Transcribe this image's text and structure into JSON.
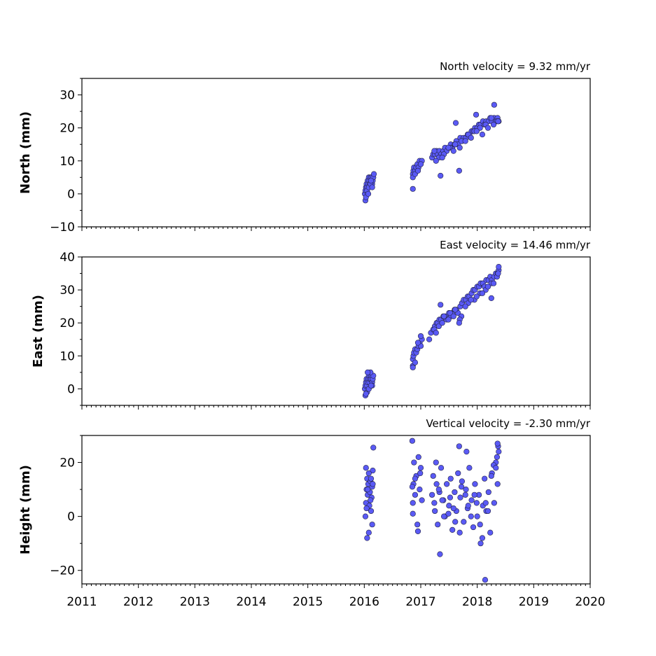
{
  "chart_data": [
    {
      "type": "scatter",
      "title": "North velocity = 9.32 mm/yr",
      "ylabel": "North (mm)",
      "xlabel": "",
      "xlim": [
        2011,
        2020
      ],
      "ylim": [
        -10,
        35
      ],
      "yticks": [
        -10,
        0,
        10,
        20,
        30
      ],
      "xticks": [
        2011,
        2012,
        2013,
        2014,
        2015,
        2016,
        2017,
        2018,
        2019,
        2020
      ],
      "show_x_tick_labels": false,
      "marker_color": "#5a5af5",
      "edge_color": "#222244",
      "series": [
        {
          "x": [
            2016.01,
            2016.02,
            2016.03,
            2016.04,
            2016.05,
            2016.06,
            2016.07,
            2016.08,
            2016.09,
            2016.1,
            2016.11,
            2016.12,
            2016.13,
            2016.14,
            2016.15,
            2016.16,
            2016.17,
            2016.02,
            2016.05,
            2016.08,
            2016.11,
            2016.14,
            2016.03,
            2016.07,
            2016.12,
            2016.86,
            2016.87,
            2016.88,
            2016.9,
            2016.92,
            2016.94,
            2016.96,
            2016.98,
            2017.0,
            2017.02,
            2016.86,
            2016.9,
            2016.95,
            2017.0,
            2017.2,
            2017.22,
            2017.25,
            2017.28,
            2017.3,
            2017.33,
            2017.36,
            2017.4,
            2017.43,
            2017.46,
            2017.5,
            2017.53,
            2017.56,
            2017.6,
            2017.63,
            2017.66,
            2017.7,
            2017.73,
            2017.76,
            2017.8,
            2017.83,
            2017.86,
            2017.9,
            2017.93,
            2017.96,
            2018.0,
            2018.03,
            2018.06,
            2018.1,
            2018.13,
            2018.16,
            2018.2,
            2018.23,
            2018.26,
            2018.3,
            2018.33,
            2018.36,
            2018.38,
            2017.24,
            2017.32,
            2017.41,
            2017.52,
            2017.61,
            2017.72,
            2017.84,
            2017.95,
            2018.05,
            2018.15,
            2018.25,
            2018.35,
            2017.27,
            2017.38,
            2017.49,
            2017.58,
            2017.69,
            2017.79,
            2017.89,
            2017.99,
            2018.09,
            2018.19,
            2018.29,
            2018.37,
            2016.86,
            2017.35,
            2017.68,
            2017.62,
            2017.98,
            2018.3
          ],
          "y": [
            0,
            1,
            2,
            3,
            2,
            4,
            3,
            5,
            4,
            3,
            5,
            4,
            5,
            3,
            4,
            5,
            6,
            -2,
            1,
            2,
            3,
            2,
            -1,
            0,
            4,
            6,
            7,
            8,
            7,
            8,
            9,
            8,
            10,
            9,
            10,
            5,
            6,
            7,
            9,
            11,
            12,
            12,
            13,
            12,
            13,
            12,
            13,
            14,
            13,
            14,
            15,
            14,
            15,
            16,
            15,
            17,
            16,
            17,
            17,
            18,
            18,
            19,
            19,
            20,
            20,
            21,
            21,
            22,
            21,
            22,
            22,
            23,
            22,
            23,
            22,
            23,
            22,
            13,
            11,
            12,
            14,
            15,
            16,
            18,
            19,
            20,
            21,
            23,
            22,
            10,
            11,
            14,
            13,
            14,
            16,
            17,
            19,
            18,
            20,
            21,
            22,
            1.5,
            5.5,
            7,
            21.5,
            24,
            27
          ]
        }
      ]
    },
    {
      "type": "scatter",
      "title": "East velocity = 14.46 mm/yr",
      "ylabel": "East (mm)",
      "xlabel": "",
      "xlim": [
        2011,
        2020
      ],
      "ylim": [
        -5,
        40
      ],
      "yticks": [
        0,
        10,
        20,
        30,
        40
      ],
      "xticks": [
        2011,
        2012,
        2013,
        2014,
        2015,
        2016,
        2017,
        2018,
        2019,
        2020
      ],
      "show_x_tick_labels": false,
      "marker_color": "#5a5af5",
      "edge_color": "#222244",
      "series": [
        {
          "x": [
            2016.01,
            2016.02,
            2016.03,
            2016.04,
            2016.05,
            2016.06,
            2016.07,
            2016.08,
            2016.09,
            2016.1,
            2016.11,
            2016.12,
            2016.13,
            2016.14,
            2016.15,
            2016.16,
            2016.02,
            2016.05,
            2016.08,
            2016.11,
            2016.14,
            2016.03,
            2016.06,
            2016.12,
            2016.86,
            2016.87,
            2016.88,
            2016.9,
            2016.92,
            2016.94,
            2016.96,
            2016.98,
            2017.0,
            2017.02,
            2016.86,
            2016.9,
            2016.95,
            2017.0,
            2017.15,
            2017.18,
            2017.22,
            2017.25,
            2017.28,
            2017.3,
            2017.33,
            2017.36,
            2017.4,
            2017.43,
            2017.46,
            2017.5,
            2017.53,
            2017.56,
            2017.6,
            2017.63,
            2017.66,
            2017.7,
            2017.73,
            2017.76,
            2017.8,
            2017.83,
            2017.86,
            2017.9,
            2017.93,
            2017.96,
            2018.0,
            2018.03,
            2018.06,
            2018.1,
            2018.13,
            2018.16,
            2018.2,
            2018.23,
            2018.26,
            2018.3,
            2018.33,
            2018.36,
            2018.38,
            2017.24,
            2017.32,
            2017.41,
            2017.52,
            2017.61,
            2017.72,
            2017.84,
            2017.95,
            2018.05,
            2018.15,
            2018.25,
            2018.35,
            2017.27,
            2017.38,
            2017.49,
            2017.58,
            2017.69,
            2017.79,
            2017.89,
            2017.99,
            2018.09,
            2018.19,
            2018.29,
            2018.37,
            2016.86,
            2017.35,
            2017.68,
            2018.25,
            2018.38
          ],
          "y": [
            0,
            1,
            2,
            3,
            1,
            2,
            3,
            4,
            2,
            3,
            4,
            3,
            4,
            2,
            3,
            4,
            -2,
            -1,
            0,
            5,
            1,
            -1.5,
            5,
            1,
            9,
            10,
            11,
            12,
            11,
            12,
            13,
            14,
            13,
            15,
            7,
            8,
            14,
            16,
            15,
            17,
            18,
            19,
            20,
            20,
            21,
            21,
            22,
            22,
            21,
            23,
            22,
            23,
            24,
            24,
            23,
            25,
            26,
            27,
            27,
            28,
            28,
            29,
            30,
            30,
            31,
            31,
            32,
            32,
            31,
            33,
            33,
            34,
            33,
            34,
            35,
            35,
            36,
            18,
            19,
            22,
            23,
            24,
            22,
            26,
            27,
            29,
            30,
            32,
            34,
            17,
            20,
            21,
            22,
            21,
            25,
            27,
            28,
            29,
            31,
            32,
            35,
            6.5,
            25.5,
            20,
            27.5,
            37
          ]
        }
      ]
    },
    {
      "type": "scatter",
      "title": "Vertical velocity = -2.30 mm/yr",
      "ylabel": "Height (mm)",
      "xlabel": "",
      "xlim": [
        2011,
        2020
      ],
      "ylim": [
        -25,
        30
      ],
      "yticks": [
        -20,
        0,
        20
      ],
      "xticks": [
        2011,
        2012,
        2013,
        2014,
        2015,
        2016,
        2017,
        2018,
        2019,
        2020
      ],
      "show_x_tick_labels": true,
      "marker_color": "#5a5af5",
      "edge_color": "#222244",
      "series": [
        {
          "x": [
            2016.02,
            2016.03,
            2016.04,
            2016.05,
            2016.06,
            2016.07,
            2016.08,
            2016.09,
            2016.1,
            2016.11,
            2016.12,
            2016.13,
            2016.14,
            2016.15,
            2016.16,
            2016.03,
            2016.05,
            2016.08,
            2016.11,
            2016.14,
            2016.04,
            2016.06,
            2016.12,
            2016.15,
            2016.85,
            2016.86,
            2016.87,
            2016.88,
            2016.9,
            2016.92,
            2016.94,
            2016.96,
            2016.98,
            2017.0,
            2016.86,
            2016.9,
            2016.95,
            2016.85,
            2016.99,
            2017.02,
            2017.2,
            2017.22,
            2017.25,
            2017.28,
            2017.3,
            2017.33,
            2017.36,
            2017.4,
            2017.43,
            2017.46,
            2017.5,
            2017.53,
            2017.56,
            2017.6,
            2017.63,
            2017.66,
            2017.7,
            2017.73,
            2017.76,
            2017.8,
            2017.83,
            2017.86,
            2017.9,
            2017.93,
            2017.96,
            2018.0,
            2018.03,
            2018.06,
            2018.1,
            2018.13,
            2018.16,
            2018.2,
            2018.23,
            2018.26,
            2018.3,
            2018.33,
            2018.36,
            2018.38,
            2017.24,
            2017.32,
            2017.41,
            2017.52,
            2017.61,
            2017.72,
            2017.84,
            2017.95,
            2018.05,
            2018.15,
            2018.25,
            2018.35,
            2017.27,
            2017.38,
            2017.49,
            2017.58,
            2017.69,
            2017.79,
            2017.89,
            2017.99,
            2018.09,
            2018.19,
            2018.29,
            2018.37,
            2017.34,
            2017.68,
            2017.81,
            2018.14,
            2018.36,
            2018.33
          ],
          "y": [
            0,
            5,
            10,
            14,
            8,
            12,
            -6,
            4,
            9,
            13,
            2,
            7,
            11,
            17,
            25.5,
            18,
            -8,
            16,
            6,
            -3,
            3,
            10,
            14,
            12,
            28,
            5,
            12,
            20,
            8,
            15,
            -3,
            22,
            10,
            18,
            1,
            14,
            -5.5,
            11,
            16,
            6,
            8,
            15,
            2,
            12,
            -3,
            9,
            18,
            6,
            0,
            12,
            4,
            14,
            -5,
            9,
            2,
            16,
            7,
            13,
            -2,
            10,
            3,
            18,
            6,
            -4,
            12,
            0,
            8,
            -10,
            4,
            14,
            2,
            9,
            -6,
            16,
            5,
            20,
            12,
            24,
            5,
            10,
            0,
            7,
            -2,
            11,
            4,
            8,
            -3,
            5,
            15,
            22,
            20,
            6,
            1,
            3,
            -6,
            8,
            0,
            5,
            -8,
            2,
            19,
            26,
            -14,
            26,
            24,
            -23.5,
            27,
            18
          ]
        }
      ]
    }
  ]
}
